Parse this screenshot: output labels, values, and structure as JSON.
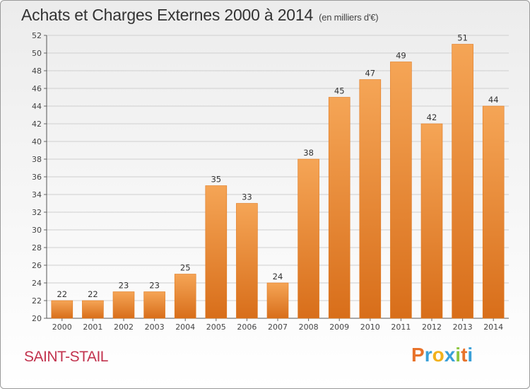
{
  "title": "Achats et Charges Externes 2000 à 2014",
  "unit_note": "(en milliers d'€)",
  "commune": "SAINT-STAIL",
  "brand": {
    "letters": [
      "P",
      "r",
      "o",
      "x",
      "i",
      "t",
      "i"
    ],
    "colors": [
      "#e8722a",
      "#3aa0d8",
      "#f2b11c",
      "#3aa0d8",
      "#8cc63f",
      "#e8722a",
      "#3aa0d8"
    ]
  },
  "colors": {
    "bar_top": "#f5a556",
    "bar_bottom": "#d86e1a",
    "grid": "#cfcfcf"
  },
  "chart_data": {
    "type": "bar",
    "title": "Achats et Charges Externes 2000 à 2014",
    "unit": "(en milliers d'€)",
    "categories": [
      "2000",
      "2001",
      "2002",
      "2003",
      "2004",
      "2005",
      "2006",
      "2007",
      "2008",
      "2009",
      "2010",
      "2011",
      "2012",
      "2013",
      "2014"
    ],
    "values": [
      22,
      22,
      23,
      23,
      25,
      35,
      33,
      24,
      38,
      45,
      47,
      49,
      42,
      51,
      44
    ],
    "ylim": [
      20,
      52
    ],
    "yticks": [
      20,
      22,
      24,
      26,
      28,
      30,
      32,
      34,
      36,
      38,
      40,
      42,
      44,
      46,
      48,
      50,
      52
    ],
    "grid": true
  }
}
